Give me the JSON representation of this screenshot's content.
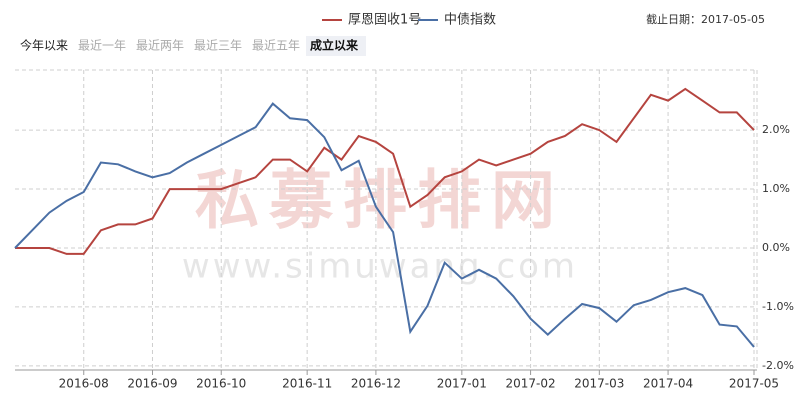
{
  "header": {
    "legend_title": null,
    "date_label": "截止日期：2017-05-05",
    "tabs": [
      "今年以来",
      "最近一年",
      "最近两年",
      "最近三年",
      "最近五年",
      "成立以来"
    ],
    "active_tab": 5
  },
  "watermark": {
    "brand": "私募排排网",
    "url": "www.simuwang.com"
  },
  "chart_data": {
    "type": "line",
    "categories": [
      null,
      null,
      null,
      null,
      "2016-08",
      null,
      null,
      null,
      "2016-09",
      null,
      null,
      null,
      "2016-10",
      null,
      null,
      null,
      null,
      "2016-11",
      null,
      null,
      null,
      "2016-12",
      null,
      null,
      null,
      null,
      "2017-01",
      null,
      null,
      null,
      "2017-02",
      null,
      null,
      null,
      "2017-03",
      null,
      null,
      null,
      "2017-04",
      null,
      null,
      null,
      null,
      "2017-05"
    ],
    "series": [
      {
        "name": "厚恩固收1号",
        "color": "#b5443f",
        "values": [
          0,
          0,
          0,
          -0.1,
          -0.1,
          0.3,
          0.4,
          0.4,
          0.5,
          1.0,
          1.0,
          1.0,
          1.0,
          1.1,
          1.2,
          1.5,
          1.5,
          1.3,
          1.7,
          1.5,
          1.9,
          1.8,
          1.6,
          0.7,
          0.9,
          1.2,
          1.3,
          1.5,
          1.4,
          1.5,
          1.6,
          1.8,
          1.9,
          2.1,
          2.0,
          1.8,
          2.2,
          2.6,
          2.5,
          2.7,
          2.5,
          2.3,
          2.3,
          2.0
        ]
      },
      {
        "name": "中债指数",
        "color": "#4a6fa5",
        "values": [
          0,
          0.3,
          0.6,
          0.8,
          0.95,
          1.45,
          1.42,
          1.3,
          1.2,
          1.27,
          1.45,
          1.6,
          1.75,
          1.9,
          2.05,
          2.45,
          2.2,
          2.17,
          1.88,
          1.32,
          1.48,
          0.7,
          0.27,
          -1.42,
          -0.98,
          -0.25,
          -0.52,
          -0.37,
          -0.52,
          -0.82,
          -1.2,
          -1.47,
          -1.2,
          -0.95,
          -1.02,
          -1.25,
          -0.97,
          -0.88,
          -0.75,
          -0.68,
          -0.8,
          -1.3,
          -1.33,
          -1.68
        ]
      }
    ],
    "ylim": [
      -2.07,
      3.02
    ],
    "yticks": [
      {
        "value": 2,
        "label": "2.0%"
      },
      {
        "value": 1,
        "label": "1.0%"
      },
      {
        "value": 0,
        "label": "0.0%"
      },
      {
        "value": -1,
        "label": "-1.0%"
      },
      {
        "value": -2,
        "label": "-2.0%"
      }
    ],
    "grid": true
  }
}
